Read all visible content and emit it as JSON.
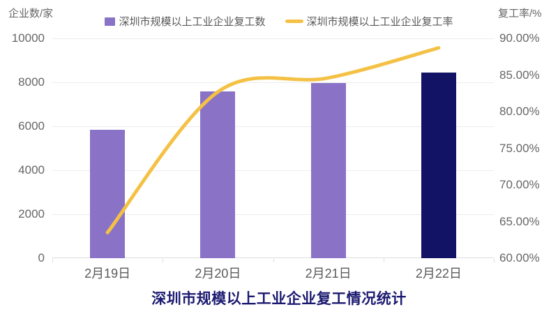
{
  "title": "深圳市规模以上工业企业复工情况统计",
  "left_axis": {
    "title": "企业数/家",
    "min": 0,
    "max": 10000,
    "step": 2000,
    "ticks": [
      "0",
      "2000",
      "4000",
      "6000",
      "8000",
      "10000"
    ]
  },
  "right_axis": {
    "title": "复工率/%",
    "min": 60,
    "max": 90,
    "step": 5,
    "ticks": [
      "60.00%",
      "65.00%",
      "70.00%",
      "75.00%",
      "80.00%",
      "85.00%",
      "90.00%"
    ]
  },
  "chart_data": {
    "type": "bar+line combo",
    "categories": [
      "2月19日",
      "2月20日",
      "2月21日",
      "2月22日"
    ],
    "series": [
      {
        "name": "深圳市规模以上工业企业复工数",
        "type": "bar",
        "axis": "left",
        "values": [
          5840,
          7580,
          7960,
          8460
        ],
        "colors": [
          "#8a72c6",
          "#8a72c6",
          "#8a72c6",
          "#131366"
        ]
      },
      {
        "name": "深圳市规模以上工业企业复工率",
        "type": "line",
        "axis": "right",
        "values": [
          63.5,
          82.7,
          84.6,
          88.7
        ],
        "color": "#f4c145",
        "smooth": true,
        "line_width": 5
      }
    ],
    "title": "深圳市规模以上工业企业复工情况统计",
    "xlabel": "",
    "ylabel_left": "企业数/家",
    "ylabel_right": "复工率/%",
    "ylim_left": [
      0,
      10000
    ],
    "ylim_right": [
      60,
      90
    ],
    "grid": true,
    "legend_position": "top"
  },
  "colors": {
    "bar_purple": "#8a72c6",
    "bar_navy": "#131366",
    "line_yellow": "#f4c145",
    "gridline": "#ececec",
    "axis_line": "#dcdcdc",
    "tick_text": "#666666",
    "title_text": "#1c1a70"
  }
}
